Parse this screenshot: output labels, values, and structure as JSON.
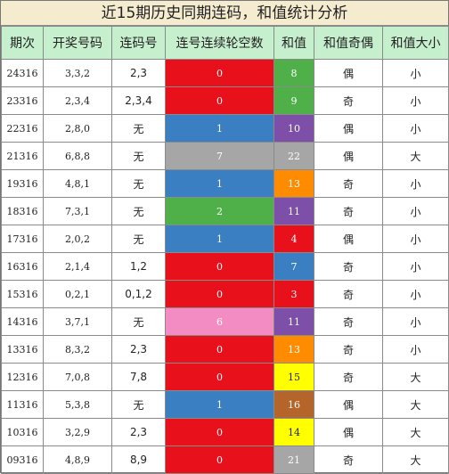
{
  "title": "近15期历史同期连码，和值统计分析",
  "headers": [
    "期次",
    "开奖号码",
    "连码号",
    "连号连续轮空数",
    "和值",
    "和值奇偶",
    "和值大小"
  ],
  "colors": {
    "red": "#e8101a",
    "blue": "#3a7fc1",
    "gray": "#a6a6a6",
    "green": "#4fb04a",
    "pink": "#f48cc4",
    "purple": "#7d4fa8",
    "orange": "#f4a020",
    "yellow": "#ffff00",
    "brown": "#b5652a",
    "he_gray": "#a6a6a6",
    "he_green": "#4fb04a",
    "he_red": "#e8101a",
    "he_blue": "#3a7fc1",
    "he_orange": "#ff8c00"
  },
  "rows": [
    {
      "issue": "24316",
      "numbers": "3,3,2",
      "lianma": "2,3",
      "lun": "0",
      "lun_color": "red",
      "he": "8",
      "he_color": "he_green",
      "oe": "偶",
      "size": "小"
    },
    {
      "issue": "23316",
      "numbers": "2,3,4",
      "lianma": "2,3,4",
      "lun": "0",
      "lun_color": "red",
      "he": "9",
      "he_color": "he_green",
      "oe": "奇",
      "size": "小"
    },
    {
      "issue": "22316",
      "numbers": "2,8,0",
      "lianma": "无",
      "lun": "1",
      "lun_color": "blue",
      "he": "10",
      "he_color": "purple",
      "oe": "偶",
      "size": "小"
    },
    {
      "issue": "21316",
      "numbers": "6,8,8",
      "lianma": "无",
      "lun": "7",
      "lun_color": "gray",
      "he": "22",
      "he_color": "he_gray",
      "oe": "偶",
      "size": "大"
    },
    {
      "issue": "19316",
      "numbers": "4,8,1",
      "lianma": "无",
      "lun": "1",
      "lun_color": "blue",
      "he": "13",
      "he_color": "he_orange",
      "oe": "奇",
      "size": "小"
    },
    {
      "issue": "18316",
      "numbers": "7,3,1",
      "lianma": "无",
      "lun": "2",
      "lun_color": "green",
      "he": "11",
      "he_color": "purple",
      "oe": "奇",
      "size": "小"
    },
    {
      "issue": "17316",
      "numbers": "2,0,2",
      "lianma": "无",
      "lun": "1",
      "lun_color": "blue",
      "he": "4",
      "he_color": "he_red",
      "oe": "偶",
      "size": "小"
    },
    {
      "issue": "16316",
      "numbers": "2,1,4",
      "lianma": "1,2",
      "lun": "0",
      "lun_color": "red",
      "he": "7",
      "he_color": "he_blue",
      "oe": "奇",
      "size": "小"
    },
    {
      "issue": "15316",
      "numbers": "0,2,1",
      "lianma": "0,1,2",
      "lun": "0",
      "lun_color": "red",
      "he": "3",
      "he_color": "he_red",
      "oe": "奇",
      "size": "小"
    },
    {
      "issue": "14316",
      "numbers": "3,7,1",
      "lianma": "无",
      "lun": "6",
      "lun_color": "pink",
      "he": "11",
      "he_color": "purple",
      "oe": "奇",
      "size": "小"
    },
    {
      "issue": "13316",
      "numbers": "8,3,2",
      "lianma": "2,3",
      "lun": "0",
      "lun_color": "red",
      "he": "13",
      "he_color": "he_orange",
      "oe": "奇",
      "size": "小"
    },
    {
      "issue": "12316",
      "numbers": "7,0,8",
      "lianma": "7,8",
      "lun": "0",
      "lun_color": "red",
      "he": "15",
      "he_color": "yellow",
      "oe": "奇",
      "size": "大"
    },
    {
      "issue": "11316",
      "numbers": "5,3,8",
      "lianma": "无",
      "lun": "1",
      "lun_color": "blue",
      "he": "16",
      "he_color": "brown",
      "oe": "偶",
      "size": "大"
    },
    {
      "issue": "10316",
      "numbers": "3,2,9",
      "lianma": "2,3",
      "lun": "0",
      "lun_color": "red",
      "he": "14",
      "he_color": "yellow",
      "oe": "偶",
      "size": "大"
    },
    {
      "issue": "09316",
      "numbers": "4,8,9",
      "lianma": "8,9",
      "lun": "0",
      "lun_color": "red",
      "he": "21",
      "he_color": "he_gray",
      "oe": "奇",
      "size": "大"
    }
  ]
}
